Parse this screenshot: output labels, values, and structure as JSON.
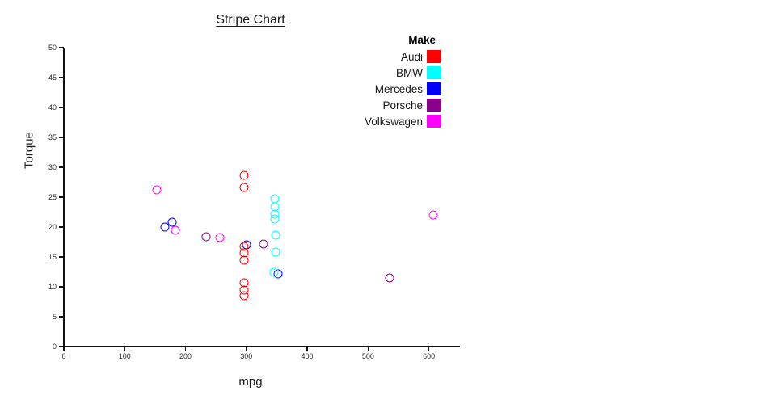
{
  "chart_data": {
    "type": "scatter",
    "title": "Stripe Chart",
    "xlabel": "mpg",
    "ylabel": "Torque",
    "xlim": [
      0,
      651
    ],
    "ylim": [
      0,
      50
    ],
    "x_ticks": [
      0,
      100,
      200,
      300,
      400,
      500,
      600
    ],
    "y_ticks": [
      0,
      5,
      10,
      15,
      20,
      25,
      30,
      35,
      40,
      45,
      50
    ],
    "grid": false,
    "marker": "open-circle",
    "legend_title": "Make",
    "legend_position": "top-right",
    "series": [
      {
        "name": "Audi",
        "color": "#FF0000",
        "points": [
          [
            296,
            28.7
          ],
          [
            296,
            26.6
          ],
          [
            296,
            16.8
          ],
          [
            296,
            15.7
          ],
          [
            296,
            14.4
          ],
          [
            296,
            10.7
          ],
          [
            296,
            9.5
          ],
          [
            296,
            8.5
          ]
        ]
      },
      {
        "name": "BMW",
        "color": "#00FFFF",
        "points": [
          [
            347,
            24.7
          ],
          [
            347,
            23.4
          ],
          [
            347,
            22.2
          ],
          [
            347,
            21.3
          ],
          [
            348,
            18.6
          ],
          [
            348,
            15.8
          ],
          [
            346,
            12.5
          ]
        ]
      },
      {
        "name": "Mercedes",
        "color": "#0000FF",
        "points": [
          [
            166,
            20.0
          ],
          [
            178,
            20.8
          ],
          [
            300,
            17.0
          ],
          [
            352,
            12.1
          ]
        ]
      },
      {
        "name": "Porsche",
        "color": "#8B008B",
        "points": [
          [
            234,
            18.4
          ],
          [
            328,
            17.1
          ],
          [
            536,
            11.5
          ]
        ]
      },
      {
        "name": "Volkswagen",
        "color": "#FF00FF",
        "points": [
          [
            153,
            26.2
          ],
          [
            183,
            19.4
          ],
          [
            256,
            18.3
          ],
          [
            607,
            22.0
          ]
        ]
      }
    ]
  }
}
